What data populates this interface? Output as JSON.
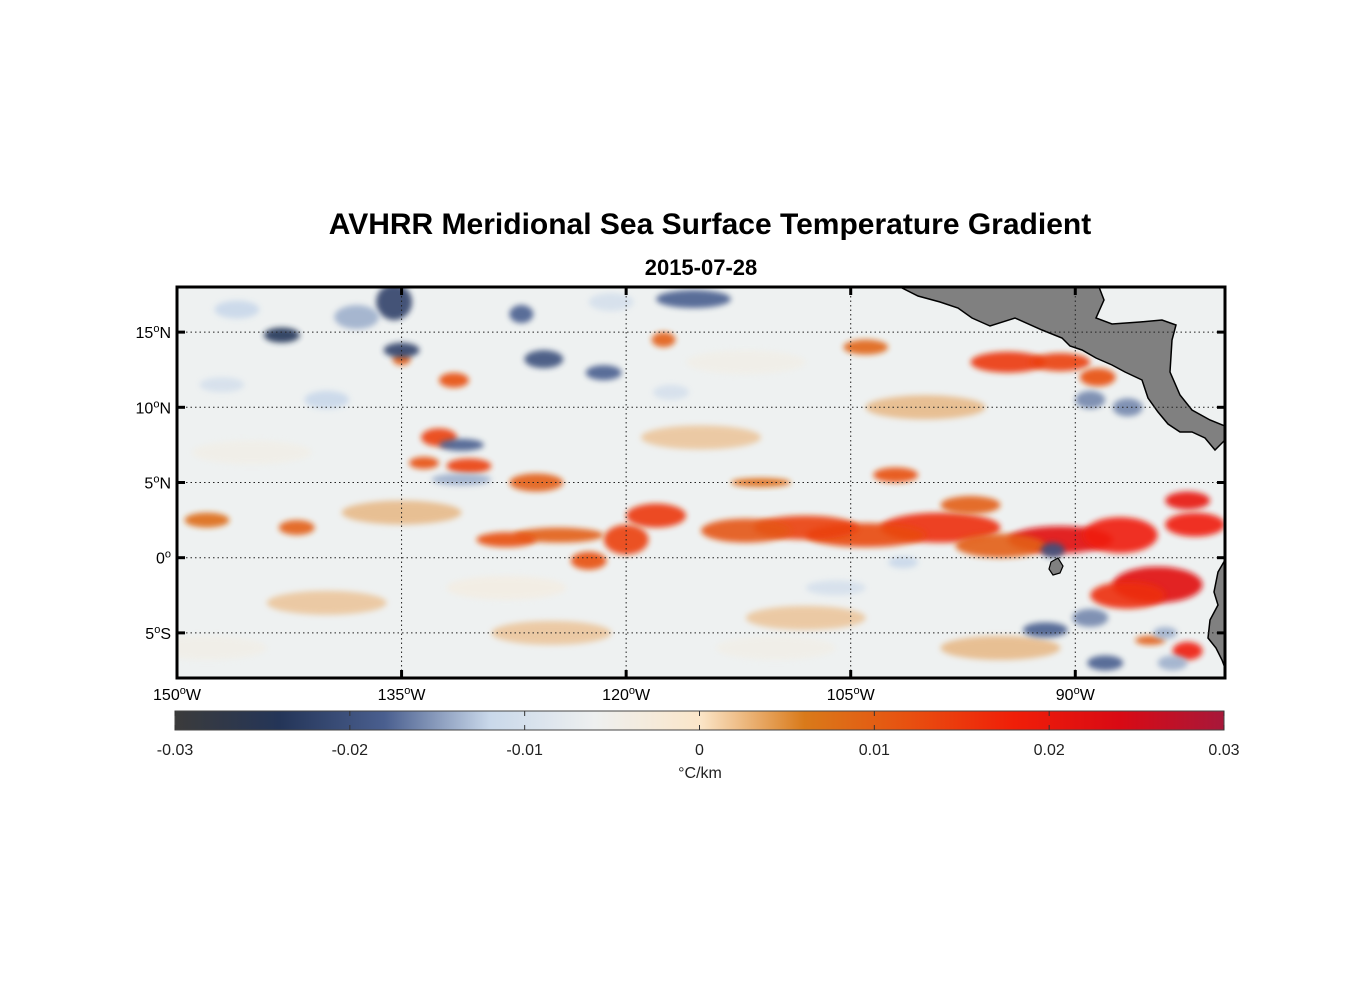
{
  "title": "AVHRR Meridional Sea Surface Temperature Gradient",
  "subtitle": "2015-07-28",
  "map": {
    "lon_range": [
      -150,
      -80
    ],
    "lat_range": [
      -8,
      18
    ],
    "grid": true,
    "land_color": "#808080",
    "lon_ticks": [
      {
        "value": -150,
        "num": "150",
        "deg": "o",
        "hem": "W"
      },
      {
        "value": -135,
        "num": "135",
        "deg": "o",
        "hem": "W"
      },
      {
        "value": -120,
        "num": "120",
        "deg": "o",
        "hem": "W"
      },
      {
        "value": -105,
        "num": "105",
        "deg": "o",
        "hem": "W"
      },
      {
        "value": -90,
        "num": "90",
        "deg": "o",
        "hem": "W"
      }
    ],
    "lat_ticks": [
      {
        "value": 15,
        "num": "15",
        "deg": "o",
        "hem": "N"
      },
      {
        "value": 10,
        "num": "10",
        "deg": "o",
        "hem": "N"
      },
      {
        "value": 5,
        "num": "5",
        "deg": "o",
        "hem": "N"
      },
      {
        "value": 0,
        "num": "0",
        "deg": "o",
        "hem": ""
      },
      {
        "value": -5,
        "num": "5",
        "deg": "o",
        "hem": "S"
      }
    ]
  },
  "colorbar": {
    "min": -0.03,
    "max": 0.03,
    "ticks": [
      {
        "value": -0.03,
        "label": "-0.03"
      },
      {
        "value": -0.02,
        "label": "-0.02"
      },
      {
        "value": -0.01,
        "label": "-0.01"
      },
      {
        "value": 0,
        "label": "0"
      },
      {
        "value": 0.01,
        "label": "0.01"
      },
      {
        "value": 0.02,
        "label": "0.02"
      },
      {
        "value": 0.03,
        "label": "0.03"
      }
    ],
    "label": "°C/km",
    "colors": [
      "#3b3b3b",
      "#243558",
      "#4a5f8f",
      "#c9d8ea",
      "#eef0f0",
      "#fbe6c9",
      "#d97a1a",
      "#e85010",
      "#f01e08",
      "#d90a14",
      "#a7183a"
    ]
  },
  "features": [
    {
      "lon": -91,
      "lat": 1.2,
      "v": 0.022,
      "rx": 3.5,
      "ry": 0.9
    },
    {
      "lon": -87,
      "lat": 1.5,
      "v": 0.018,
      "rx": 2.5,
      "ry": 1.2
    },
    {
      "lon": -84.5,
      "lat": -1.8,
      "v": 0.022,
      "rx": 3,
      "ry": 1.2
    },
    {
      "lon": -86.5,
      "lat": -2.5,
      "v": 0.016,
      "rx": 2.5,
      "ry": 0.9
    },
    {
      "lon": -82.5,
      "lat": 3.8,
      "v": 0.02,
      "rx": 1.5,
      "ry": 0.6
    },
    {
      "lon": -82,
      "lat": 2.2,
      "v": 0.018,
      "rx": 2,
      "ry": 0.8
    },
    {
      "lon": -82.5,
      "lat": -6.2,
      "v": 0.018,
      "rx": 1,
      "ry": 0.6
    },
    {
      "lon": -85,
      "lat": -5.5,
      "v": 0.01,
      "rx": 1,
      "ry": 0.3
    },
    {
      "lon": -99,
      "lat": 2.0,
      "v": 0.016,
      "rx": 4,
      "ry": 1.0
    },
    {
      "lon": -104,
      "lat": 1.5,
      "v": 0.013,
      "rx": 4,
      "ry": 0.8
    },
    {
      "lon": -108,
      "lat": 2.0,
      "v": 0.014,
      "rx": 3.5,
      "ry": 0.8
    },
    {
      "lon": -112,
      "lat": 1.8,
      "v": 0.011,
      "rx": 3,
      "ry": 0.8
    },
    {
      "lon": -95,
      "lat": 0.8,
      "v": 0.01,
      "rx": 3,
      "ry": 0.8
    },
    {
      "lon": -118,
      "lat": 2.8,
      "v": 0.015,
      "rx": 2,
      "ry": 0.8
    },
    {
      "lon": -120,
      "lat": 1.2,
      "v": 0.014,
      "rx": 1.5,
      "ry": 1.0
    },
    {
      "lon": -124.5,
      "lat": 1.5,
      "v": 0.01,
      "rx": 3,
      "ry": 0.5
    },
    {
      "lon": -122.5,
      "lat": -0.2,
      "v": 0.012,
      "rx": 1.2,
      "ry": 0.6
    },
    {
      "lon": -128,
      "lat": 1.2,
      "v": 0.012,
      "rx": 2,
      "ry": 0.5
    },
    {
      "lon": -126,
      "lat": 5.0,
      "v": 0.01,
      "rx": 1.8,
      "ry": 0.6
    },
    {
      "lon": -132.5,
      "lat": 8.0,
      "v": 0.014,
      "rx": 1.2,
      "ry": 0.6
    },
    {
      "lon": -130.5,
      "lat": 6.1,
      "v": 0.014,
      "rx": 1.5,
      "ry": 0.5
    },
    {
      "lon": -133.5,
      "lat": 6.3,
      "v": 0.012,
      "rx": 1,
      "ry": 0.4
    },
    {
      "lon": -131.5,
      "lat": 11.8,
      "v": 0.012,
      "rx": 1,
      "ry": 0.5
    },
    {
      "lon": -94.5,
      "lat": 13.0,
      "v": 0.015,
      "rx": 2.5,
      "ry": 0.7
    },
    {
      "lon": -91,
      "lat": 13.0,
      "v": 0.014,
      "rx": 2,
      "ry": 0.6
    },
    {
      "lon": -88.5,
      "lat": 12.0,
      "v": 0.012,
      "rx": 1.2,
      "ry": 0.6
    },
    {
      "lon": -102,
      "lat": 5.5,
      "v": 0.012,
      "rx": 1.5,
      "ry": 0.5
    },
    {
      "lon": -111,
      "lat": 5.0,
      "v": 0.008,
      "rx": 2,
      "ry": 0.3
    },
    {
      "lon": -148,
      "lat": 2.5,
      "v": 0.008,
      "rx": 1.5,
      "ry": 0.5
    },
    {
      "lon": -142,
      "lat": 2.0,
      "v": 0.01,
      "rx": 1.2,
      "ry": 0.5
    },
    {
      "lon": -135,
      "lat": 13.2,
      "v": 0.01,
      "rx": 0.6,
      "ry": 0.4
    },
    {
      "lon": -104,
      "lat": 14.0,
      "v": 0.009,
      "rx": 1.5,
      "ry": 0.5
    },
    {
      "lon": -117.5,
      "lat": 14.5,
      "v": 0.01,
      "rx": 0.8,
      "ry": 0.5
    },
    {
      "lon": -97,
      "lat": 3.5,
      "v": 0.01,
      "rx": 2,
      "ry": 0.6
    },
    {
      "lon": -143,
      "lat": 14.8,
      "v": -0.024,
      "rx": 1.2,
      "ry": 0.5
    },
    {
      "lon": -135.5,
      "lat": 17.0,
      "v": -0.022,
      "rx": 1.2,
      "ry": 1.2
    },
    {
      "lon": -135,
      "lat": 13.8,
      "v": -0.022,
      "rx": 1.2,
      "ry": 0.5
    },
    {
      "lon": -131,
      "lat": 7.5,
      "v": -0.018,
      "rx": 1.5,
      "ry": 0.4
    },
    {
      "lon": -131,
      "lat": 5.2,
      "v": -0.014,
      "rx": 2,
      "ry": 0.4
    },
    {
      "lon": -127,
      "lat": 16.2,
      "v": -0.018,
      "rx": 0.8,
      "ry": 0.6
    },
    {
      "lon": -125.5,
      "lat": 13.2,
      "v": -0.02,
      "rx": 1.3,
      "ry": 0.6
    },
    {
      "lon": -121.5,
      "lat": 12.3,
      "v": -0.018,
      "rx": 1.2,
      "ry": 0.5
    },
    {
      "lon": -115.5,
      "lat": 17.2,
      "v": -0.018,
      "rx": 2.5,
      "ry": 0.6
    },
    {
      "lon": -138,
      "lat": 16.0,
      "v": -0.014,
      "rx": 1.5,
      "ry": 0.8
    },
    {
      "lon": -146,
      "lat": 16.5,
      "v": -0.012,
      "rx": 1.5,
      "ry": 0.6
    },
    {
      "lon": -140,
      "lat": 10.5,
      "v": -0.012,
      "rx": 1.5,
      "ry": 0.6
    },
    {
      "lon": -101.5,
      "lat": -0.3,
      "v": -0.012,
      "rx": 1,
      "ry": 0.4
    },
    {
      "lon": -92,
      "lat": -4.8,
      "v": -0.018,
      "rx": 1.5,
      "ry": 0.5
    },
    {
      "lon": -89,
      "lat": -4.0,
      "v": -0.016,
      "rx": 1.2,
      "ry": 0.6
    },
    {
      "lon": -89,
      "lat": 10.5,
      "v": -0.016,
      "rx": 1,
      "ry": 0.6
    },
    {
      "lon": -86.5,
      "lat": 10.0,
      "v": -0.016,
      "rx": 1,
      "ry": 0.6
    },
    {
      "lon": -91.5,
      "lat": 0.5,
      "v": -0.02,
      "rx": 0.8,
      "ry": 0.5
    },
    {
      "lon": -88,
      "lat": -7.0,
      "v": -0.018,
      "rx": 1.2,
      "ry": 0.5
    },
    {
      "lon": -83.5,
      "lat": -7.0,
      "v": -0.014,
      "rx": 1,
      "ry": 0.5
    },
    {
      "lon": -84,
      "lat": -5.0,
      "v": -0.014,
      "rx": 0.8,
      "ry": 0.4
    },
    {
      "lon": -106,
      "lat": -2.0,
      "v": -0.01,
      "rx": 2,
      "ry": 0.5
    },
    {
      "lon": -117,
      "lat": 11.0,
      "v": -0.01,
      "rx": 1.2,
      "ry": 0.5
    },
    {
      "lon": -147,
      "lat": 11.5,
      "v": -0.01,
      "rx": 1.5,
      "ry": 0.5
    },
    {
      "lon": -121,
      "lat": 17.0,
      "v": -0.01,
      "rx": 1.5,
      "ry": 0.6
    }
  ]
}
